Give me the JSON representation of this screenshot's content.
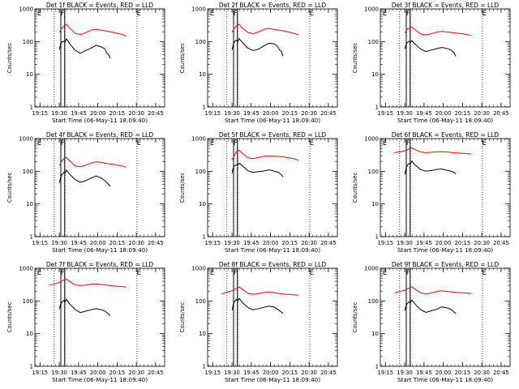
{
  "chart_data": [
    {
      "type": "line",
      "title": "Det 1f BLACK = Events, RED = LLD",
      "xlabel": "Start Time (06-May-11 18:09:40)",
      "ylabel": "Counts/sec",
      "xticks": [
        "19:15",
        "19:30",
        "19:45",
        "20:00",
        "20:15",
        "20:30",
        "20:45"
      ],
      "yticks": [
        "1",
        "10",
        "100",
        "1000"
      ],
      "ylim": [
        1,
        1000
      ],
      "log_y": true,
      "markers": [
        "E",
        "F",
        "E"
      ],
      "series": [
        {
          "color": "#ff0000",
          "x": [
            18.0,
            18.5,
            19.0,
            19.5,
            20.0,
            21.0,
            22.5,
            24.0,
            25.5,
            27.0,
            28.5,
            30.0,
            31.5,
            33.0,
            34.5,
            36.0,
            37.0
          ],
          "y": [
            190,
            240,
            270,
            310,
            330,
            250,
            175,
            160,
            185,
            225,
            240,
            225,
            215,
            200,
            185,
            170,
            150
          ]
        },
        {
          "color": "#000000",
          "x": [
            18.0,
            18.3,
            18.7,
            19.2,
            19.6,
            20.0,
            20.3,
            21.0,
            22.5,
            24.0,
            25.5,
            27.0,
            28.5,
            30.0,
            31.0,
            31.5,
            32.0,
            32.5
          ],
          "y": [
            55,
            80,
            95,
            100,
            95,
            120,
            110,
            85,
            55,
            45,
            55,
            65,
            80,
            70,
            60,
            45,
            40,
            30
          ]
        }
      ]
    },
    {
      "type": "line",
      "title": "Det 2f BLACK = Events, RED = LLD",
      "xlabel": "Start Time (06-May-11 18:09:40)",
      "ylabel": "Counts/sec",
      "xticks": [
        "19:15",
        "19:30",
        "19:45",
        "20:00",
        "20:15",
        "20:30",
        "20:45"
      ],
      "yticks": [
        "1",
        "10",
        "100",
        "1000"
      ],
      "ylim": [
        1,
        1000
      ],
      "log_y": true,
      "markers": [
        "E",
        "F",
        "E"
      ],
      "series": [
        {
          "color": "#ff0000",
          "x": [
            18.0,
            18.5,
            19.0,
            19.5,
            20.0,
            21.0,
            22.5,
            24.0,
            25.5,
            27.0,
            28.5,
            30.0,
            31.5,
            33.0,
            34.5,
            36.0,
            37.0
          ],
          "y": [
            190,
            240,
            270,
            320,
            330,
            250,
            190,
            175,
            200,
            240,
            260,
            240,
            230,
            215,
            195,
            175,
            160
          ]
        },
        {
          "color": "#000000",
          "x": [
            18.0,
            18.3,
            18.7,
            19.2,
            19.6,
            20.0,
            20.3,
            21.0,
            22.5,
            24.0,
            25.5,
            27.0,
            28.5,
            30.0,
            31.0,
            31.5,
            32.0,
            32.5
          ],
          "y": [
            55,
            80,
            100,
            110,
            100,
            125,
            115,
            95,
            65,
            55,
            60,
            75,
            90,
            85,
            70,
            55,
            50,
            35
          ]
        }
      ]
    },
    {
      "type": "line",
      "title": "Det 3f BLACK = Events, RED = LLD",
      "xlabel": "Start Time (06-May-11 18:09:40)",
      "ylabel": "Counts/sec",
      "xticks": [
        "19:15",
        "19:30",
        "19:45",
        "20:00",
        "20:15",
        "20:30",
        "20:45"
      ],
      "yticks": [
        "1",
        "10",
        "100",
        "1000"
      ],
      "ylim": [
        1,
        1000
      ],
      "log_y": true,
      "markers": [
        "E",
        "F",
        "E"
      ],
      "series": [
        {
          "color": "#ff0000",
          "x": [
            18.0,
            18.5,
            19.0,
            19.5,
            20.0,
            21.0,
            22.5,
            24.0,
            25.5,
            27.0,
            28.5,
            30.0,
            31.5,
            33.0,
            34.5,
            36.0,
            37.0
          ],
          "y": [
            180,
            220,
            250,
            270,
            280,
            230,
            175,
            165,
            180,
            200,
            210,
            200,
            190,
            180,
            170,
            160,
            150
          ]
        },
        {
          "color": "#000000",
          "x": [
            18.0,
            18.3,
            18.7,
            19.2,
            19.6,
            20.0,
            20.3,
            21.0,
            22.5,
            24.0,
            25.5,
            27.0,
            28.5,
            30.0,
            31.0,
            31.5,
            32.0,
            32.5
          ],
          "y": [
            60,
            80,
            95,
            105,
            95,
            110,
            100,
            85,
            60,
            50,
            55,
            60,
            65,
            60,
            55,
            50,
            45,
            35
          ]
        }
      ]
    },
    {
      "type": "line",
      "title": "Det 4f BLACK = Events, RED = LLD",
      "xlabel": "Start Time (06-May-11 18:09:40)",
      "ylabel": "Counts/sec",
      "xticks": [
        "19:15",
        "19:30",
        "19:45",
        "20:00",
        "20:15",
        "20:30",
        "20:45"
      ],
      "yticks": [
        "1",
        "10",
        "100",
        "1000"
      ],
      "ylim": [
        1,
        1000
      ],
      "log_y": true,
      "markers": [
        "E",
        "F",
        "E"
      ],
      "series": [
        {
          "color": "#ff0000",
          "x": [
            18.0,
            18.5,
            19.0,
            19.5,
            20.0,
            21.0,
            22.5,
            24.0,
            25.5,
            27.0,
            28.5,
            30.0,
            31.5,
            33.0,
            34.5,
            36.0,
            37.0
          ],
          "y": [
            150,
            190,
            230,
            260,
            270,
            210,
            150,
            140,
            155,
            180,
            195,
            185,
            170,
            160,
            150,
            140,
            130
          ]
        },
        {
          "color": "#000000",
          "x": [
            18.0,
            18.3,
            18.7,
            19.2,
            19.6,
            20.0,
            20.3,
            21.0,
            22.5,
            24.0,
            25.5,
            27.0,
            28.5,
            30.0,
            31.0,
            31.5,
            32.0,
            32.5
          ],
          "y": [
            45,
            65,
            80,
            95,
            90,
            110,
            100,
            80,
            55,
            45,
            50,
            60,
            70,
            60,
            50,
            45,
            40,
            35
          ]
        }
      ]
    },
    {
      "type": "line",
      "title": "Det 5f BLACK = Events, RED = LLD",
      "xlabel": "Start Time (06-May-11 18:09:40)",
      "ylabel": "Counts/sec",
      "xticks": [
        "19:15",
        "19:30",
        "19:45",
        "20:00",
        "20:15",
        "20:30",
        "20:45"
      ],
      "yticks": [
        "1",
        "10",
        "100",
        "1000"
      ],
      "ylim": [
        1,
        1000
      ],
      "log_y": true,
      "markers": [
        "E",
        "F",
        "E"
      ],
      "series": [
        {
          "color": "#ff0000",
          "x": [
            18.0,
            18.5,
            19.0,
            19.5,
            20.0,
            21.0,
            22.5,
            24.0,
            25.5,
            27.0,
            28.5,
            30.0,
            31.5,
            33.0,
            34.5,
            36.0,
            37.0
          ],
          "y": [
            230,
            300,
            380,
            430,
            450,
            350,
            260,
            240,
            260,
            280,
            290,
            280,
            275,
            265,
            250,
            235,
            210
          ]
        },
        {
          "color": "#000000",
          "x": [
            18.0,
            18.3,
            18.7,
            19.2,
            19.6,
            20.0,
            20.3,
            21.0,
            22.5,
            24.0,
            25.5,
            27.0,
            28.5,
            30.0,
            31.0,
            31.5,
            32.0,
            32.5
          ],
          "y": [
            90,
            130,
            150,
            160,
            150,
            175,
            165,
            140,
            100,
            90,
            95,
            100,
            110,
            100,
            95,
            90,
            80,
            70
          ]
        }
      ]
    },
    {
      "type": "line",
      "title": "Det 6f BLACK = Events, RED = LLD",
      "xlabel": "Start Time (06-May-11 18:09:40)",
      "ylabel": "Counts/sec",
      "xticks": [
        "19:15",
        "19:30",
        "19:45",
        "20:00",
        "20:15",
        "20:30",
        "20:45"
      ],
      "yticks": [
        "1",
        "10",
        "100",
        "1000"
      ],
      "ylim": [
        1,
        1000
      ],
      "log_y": true,
      "markers": [
        "E",
        "F",
        "E"
      ],
      "series": [
        {
          "color": "#ff0000",
          "x": [
            15.0,
            16.5,
            18.0,
            19.0,
            20.0,
            21.0,
            22.5,
            24.0,
            25.5,
            27.0,
            28.5,
            30.0,
            31.5,
            33.0,
            34.5,
            36.0,
            37.0
          ],
          "y": [
            380,
            400,
            430,
            480,
            520,
            450,
            380,
            360,
            370,
            380,
            390,
            380,
            370,
            365,
            360,
            350,
            345
          ]
        },
        {
          "color": "#000000",
          "x": [
            18.0,
            18.3,
            18.7,
            19.2,
            19.6,
            20.0,
            20.3,
            21.0,
            22.5,
            24.0,
            25.5,
            27.0,
            28.5,
            30.0,
            31.0,
            31.5,
            32.0,
            32.5
          ],
          "y": [
            80,
            120,
            150,
            170,
            160,
            200,
            180,
            150,
            110,
            100,
            105,
            115,
            120,
            110,
            105,
            100,
            95,
            85
          ]
        }
      ]
    },
    {
      "type": "line",
      "title": "Det 7f BLACK = Events, RED = LLD",
      "xlabel": "Start Time (06-May-11 18:09:40)",
      "ylabel": "Counts/sec",
      "xticks": [
        "19:15",
        "19:30",
        "19:45",
        "20:00",
        "20:15",
        "20:30",
        "20:45"
      ],
      "yticks": [
        "1",
        "10",
        "100",
        "1000"
      ],
      "ylim": [
        1,
        1000
      ],
      "log_y": true,
      "markers": [
        "E",
        "F",
        "E"
      ],
      "series": [
        {
          "color": "#ff0000",
          "x": [
            15.0,
            16.5,
            18.0,
            19.0,
            20.0,
            21.0,
            22.5,
            24.0,
            25.5,
            27.0,
            28.5,
            30.0,
            31.5,
            33.0,
            34.5,
            36.0,
            37.0
          ],
          "y": [
            300,
            330,
            360,
            420,
            450,
            380,
            300,
            290,
            300,
            320,
            330,
            320,
            310,
            300,
            290,
            280,
            270
          ]
        },
        {
          "color": "#000000",
          "x": [
            18.0,
            18.3,
            18.7,
            19.2,
            19.6,
            20.0,
            20.3,
            21.0,
            22.5,
            24.0,
            25.5,
            27.0,
            28.5,
            30.0,
            31.0,
            31.5,
            32.0,
            32.5
          ],
          "y": [
            55,
            75,
            90,
            100,
            90,
            110,
            100,
            80,
            55,
            45,
            50,
            55,
            60,
            55,
            50,
            45,
            40,
            35
          ]
        }
      ]
    },
    {
      "type": "line",
      "title": "Det 8f BLACK = Events, RED = LLD",
      "xlabel": "Start Time (06-May-11 18:09:40)",
      "ylabel": "Counts/sec",
      "xticks": [
        "19:15",
        "19:30",
        "19:45",
        "20:00",
        "20:15",
        "20:30",
        "20:45"
      ],
      "yticks": [
        "1",
        "10",
        "100",
        "1000"
      ],
      "ylim": [
        1,
        1000
      ],
      "log_y": true,
      "markers": [
        "E",
        "F",
        "E"
      ],
      "series": [
        {
          "color": "#ff0000",
          "x": [
            15.0,
            16.5,
            18.0,
            19.0,
            20.0,
            21.0,
            22.5,
            24.0,
            25.5,
            27.0,
            28.5,
            30.0,
            31.5,
            33.0,
            34.5,
            36.0,
            37.0
          ],
          "y": [
            160,
            180,
            200,
            230,
            260,
            220,
            170,
            160,
            170,
            185,
            195,
            185,
            175,
            165,
            160,
            155,
            150
          ]
        },
        {
          "color": "#000000",
          "x": [
            18.0,
            18.3,
            18.7,
            19.2,
            19.6,
            20.0,
            20.3,
            21.0,
            22.5,
            24.0,
            25.5,
            27.0,
            28.5,
            30.0,
            31.0,
            31.5,
            32.0,
            32.5
          ],
          "y": [
            50,
            75,
            95,
            110,
            100,
            120,
            110,
            90,
            65,
            55,
            60,
            65,
            70,
            65,
            55,
            50,
            45,
            40
          ]
        }
      ]
    },
    {
      "type": "line",
      "title": "Det 9f BLACK = Events, RED = LLD",
      "xlabel": "Start Time (06-May-11 18:09:40)",
      "ylabel": "Counts/sec",
      "xticks": [
        "19:15",
        "19:30",
        "19:45",
        "20:00",
        "20:15",
        "20:30",
        "20:45"
      ],
      "yticks": [
        "1",
        "10",
        "100",
        "1000"
      ],
      "ylim": [
        1,
        1000
      ],
      "log_y": true,
      "markers": [
        "E",
        "F",
        "E"
      ],
      "series": [
        {
          "color": "#ff0000",
          "x": [
            15.0,
            16.5,
            18.0,
            19.0,
            20.0,
            21.0,
            22.5,
            24.0,
            25.5,
            27.0,
            28.5,
            30.0,
            31.5,
            33.0,
            34.5,
            36.0,
            37.0
          ],
          "y": [
            170,
            190,
            210,
            240,
            270,
            230,
            180,
            170,
            180,
            200,
            210,
            200,
            190,
            180,
            175,
            170,
            165
          ]
        },
        {
          "color": "#000000",
          "x": [
            18.0,
            18.3,
            18.7,
            19.2,
            19.6,
            20.0,
            20.3,
            21.0,
            22.5,
            24.0,
            25.5,
            27.0,
            28.5,
            30.0,
            31.0,
            31.5,
            32.0,
            32.5
          ],
          "y": [
            50,
            70,
            85,
            95,
            90,
            110,
            100,
            80,
            55,
            45,
            50,
            55,
            65,
            60,
            55,
            50,
            45,
            40
          ]
        }
      ]
    }
  ]
}
